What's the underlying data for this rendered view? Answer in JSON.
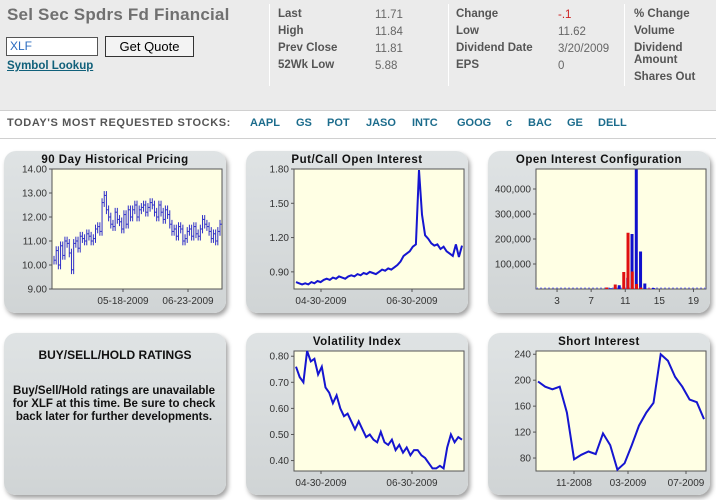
{
  "header": {
    "title": "Sel Sec Spdrs Fd Financial",
    "symbol_value": "XLF",
    "get_quote_label": "Get Quote",
    "symbol_lookup_label": "Symbol Lookup",
    "quote_fields": [
      {
        "label": "Last",
        "value": "11.71"
      },
      {
        "label": "High",
        "value": "11.84"
      },
      {
        "label": "Prev Close",
        "value": "11.81"
      },
      {
        "label": "52Wk Low",
        "value": "5.88"
      }
    ],
    "quote_fields2": [
      {
        "label": "Change",
        "value": "-.1"
      },
      {
        "label": "Low",
        "value": "11.62"
      },
      {
        "label": "Dividend Date",
        "value": "3/20/2009"
      },
      {
        "label": "EPS",
        "value": "0"
      }
    ],
    "quote_fields3": [
      "% Change",
      "Volume",
      "Dividend Amount",
      "Shares Out"
    ],
    "change_color": "#cc2222"
  },
  "requested": {
    "label": "TODAY'S MOST REQUESTED STOCKS:",
    "tickers": [
      "AAPL",
      "GS",
      "POT",
      "JASO",
      "INTC",
      "GOOG",
      "c",
      "BAC",
      "GE",
      "DELL"
    ]
  },
  "ratings": {
    "title": "BUY/SELL/HOLD RATINGS",
    "text": "Buy/Sell/Hold ratings are unavailable for XLF at this time. Be sure to check back later for further developments."
  },
  "chart_data": [
    {
      "type": "ohlc",
      "title": "90 Day Historical Pricing",
      "ylim": [
        9.0,
        14.0
      ],
      "yticks": [
        "14.00",
        "13.00",
        "12.00",
        "11.00",
        "10.00",
        "9.00"
      ],
      "xticks": [
        "05-18-2009",
        "06-23-2009"
      ],
      "close": [
        10.2,
        10.6,
        10.0,
        10.8,
        10.4,
        11.0,
        10.9,
        10.5,
        9.8,
        10.9,
        11.0,
        10.7,
        11.2,
        11.1,
        11.0,
        11.3,
        11.2,
        11.0,
        11.1,
        11.5,
        11.6,
        11.4,
        12.6,
        12.9,
        12.3,
        12.0,
        11.7,
        11.6,
        12.2,
        11.9,
        11.8,
        11.5,
        12.1,
        11.7,
        12.3,
        12.0,
        12.3,
        12.5,
        12.0,
        12.3,
        12.4,
        12.5,
        12.2,
        12.4,
        12.6,
        12.5,
        12.2,
        12.0,
        12.5,
        12.2,
        11.9,
        12.3,
        12.1,
        11.7,
        11.4,
        11.5,
        11.2,
        11.6,
        11.5,
        11.0,
        11.1,
        11.4,
        11.5,
        11.2,
        11.6,
        11.3,
        11.2,
        11.5,
        11.9,
        11.7,
        11.6,
        11.4,
        11.1,
        11.3,
        11.0,
        11.4,
        11.7
      ]
    },
    {
      "type": "line",
      "title": "Put/Call Open Interest",
      "ylim": [
        0.75,
        1.8
      ],
      "yticks": [
        "1.80",
        "1.50",
        "1.20",
        "0.90"
      ],
      "xticks": [
        "04-30-2009",
        "06-30-2009"
      ],
      "values": [
        0.81,
        0.8,
        0.79,
        0.8,
        0.79,
        0.81,
        0.8,
        0.82,
        0.81,
        0.83,
        0.84,
        0.83,
        0.85,
        0.84,
        0.86,
        0.85,
        0.84,
        0.86,
        0.87,
        0.86,
        0.88,
        0.87,
        0.89,
        0.88,
        0.9,
        0.89,
        0.88,
        0.9,
        0.92,
        0.91,
        0.93,
        0.92,
        0.94,
        0.96,
        0.99,
        1.04,
        1.06,
        1.08,
        1.12,
        1.14,
        1.79,
        1.4,
        1.22,
        1.19,
        1.15,
        1.13,
        1.14,
        1.1,
        1.12,
        1.08,
        1.06,
        1.04,
        1.14,
        1.03,
        1.13
      ]
    },
    {
      "type": "bar",
      "title": "Open Interest Configuration",
      "ylim": [
        0,
        480000
      ],
      "yticks": [
        "400,000",
        "300,000",
        "200,000",
        "100,000"
      ],
      "xticks": [
        "3",
        "7",
        "11",
        "15",
        "19"
      ],
      "strikes": [
        9,
        10,
        11,
        11.5,
        12,
        12.5,
        13,
        14
      ],
      "calls": [
        3000,
        15000,
        45000,
        220000,
        478000,
        150000,
        22000,
        4000
      ],
      "puts": [
        6000,
        18000,
        68000,
        225000,
        70000,
        20000,
        6000,
        2000
      ],
      "colors": {
        "calls": "#1010cc",
        "puts": "#e01010"
      }
    },
    {
      "type": "line",
      "title": "Volatility Index",
      "ylim": [
        0.36,
        0.82
      ],
      "yticks": [
        "0.80",
        "0.70",
        "0.60",
        "0.50",
        "0.40"
      ],
      "xticks": [
        "04-30-2009",
        "06-30-2009"
      ],
      "values": [
        0.76,
        0.72,
        0.7,
        0.82,
        0.78,
        0.79,
        0.73,
        0.76,
        0.68,
        0.66,
        0.62,
        0.65,
        0.6,
        0.57,
        0.58,
        0.55,
        0.52,
        0.55,
        0.52,
        0.49,
        0.5,
        0.48,
        0.47,
        0.51,
        0.47,
        0.46,
        0.48,
        0.44,
        0.46,
        0.43,
        0.45,
        0.42,
        0.44,
        0.44,
        0.42,
        0.41,
        0.39,
        0.37,
        0.37,
        0.38,
        0.37,
        0.45,
        0.5,
        0.47,
        0.49,
        0.48
      ]
    },
    {
      "type": "line",
      "title": "Short Interest",
      "ylim": [
        60,
        245
      ],
      "yticks": [
        "240",
        "200",
        "160",
        "120",
        "80"
      ],
      "xticks": [
        "11-2008",
        "03-2009",
        "07-2009"
      ],
      "values": [
        198,
        190,
        186,
        190,
        150,
        78,
        85,
        90,
        86,
        118,
        100,
        62,
        72,
        100,
        130,
        150,
        165,
        240,
        230,
        205,
        190,
        170,
        166,
        140
      ]
    }
  ]
}
